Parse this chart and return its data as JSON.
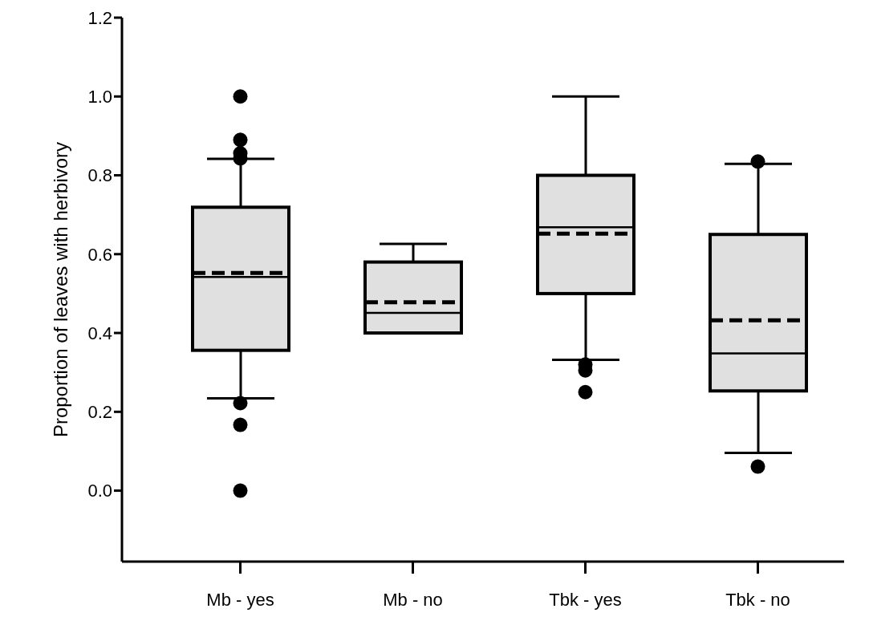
{
  "chart_data": {
    "type": "box",
    "ylabel": "Proportion of leaves with herbivory",
    "categories": [
      "Mb - yes",
      "Mb - no",
      "Tbk - yes",
      "Tbk - no"
    ],
    "color": "#e0e0e0",
    "marker": "circle",
    "ylim": [
      -0.18,
      1.2
    ],
    "yticks": [
      {
        "value": 0,
        "label": "0.0"
      },
      0.2,
      0.4,
      0.6,
      0.8,
      {
        "value": 1,
        "label": "1.0"
      },
      1.2
    ],
    "boxes": [
      {
        "low": 0.234,
        "q1": 0.356,
        "median": 0.542,
        "q3": 0.719,
        "high": 0.842,
        "mean": 0.552,
        "outliers": [
          1.0,
          0.89,
          0.856,
          0.843,
          0.222,
          0.167,
          0.0
        ]
      },
      {
        "low": 0.4,
        "q1": 0.4,
        "median": 0.451,
        "q3": 0.58,
        "high": 0.626,
        "mean": 0.478
      },
      {
        "low": 0.332,
        "q1": 0.5,
        "median": 0.668,
        "q3": 0.8,
        "high": 1.0,
        "mean": 0.652,
        "outliers": [
          0.32,
          0.305,
          0.25
        ]
      },
      {
        "low": 0.096,
        "q1": 0.253,
        "median": 0.348,
        "q3": 0.65,
        "high": 0.829,
        "mean": 0.432,
        "outliers": [
          0.835,
          0.061
        ]
      }
    ]
  }
}
